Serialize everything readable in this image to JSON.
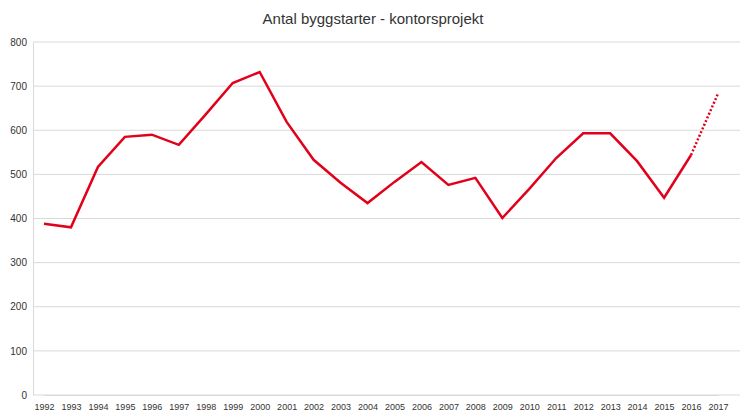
{
  "chart_data": {
    "type": "line",
    "title": "Antal byggstarter - kontorsprojekt",
    "categories": [
      "1992",
      "1993",
      "1994",
      "1995",
      "1996",
      "1997",
      "1998",
      "1999",
      "2000",
      "2001",
      "2002",
      "2003",
      "2004",
      "2005",
      "2006",
      "2007",
      "2008",
      "2009",
      "2010",
      "2011",
      "2012",
      "2013",
      "2014",
      "2015",
      "2016",
      "2017"
    ],
    "series": [
      {
        "color": "#e2001a",
        "line_style": "solid",
        "values": [
          388,
          380,
          517,
          585,
          590,
          567,
          636,
          707,
          732,
          619,
          533,
          481,
          435,
          483,
          528,
          476,
          492,
          401,
          467,
          537,
          593,
          593,
          530,
          447,
          544,
          null
        ]
      },
      {
        "color": "#e2001a",
        "line_style": "dotted",
        "values": [
          null,
          null,
          null,
          null,
          null,
          null,
          null,
          null,
          null,
          null,
          null,
          null,
          null,
          null,
          null,
          null,
          null,
          null,
          null,
          null,
          null,
          null,
          null,
          null,
          544,
          683
        ]
      }
    ],
    "ylim": [
      0,
      800
    ],
    "yticks": [
      0,
      100,
      200,
      300,
      400,
      500,
      600,
      700,
      800
    ],
    "grid": true
  }
}
